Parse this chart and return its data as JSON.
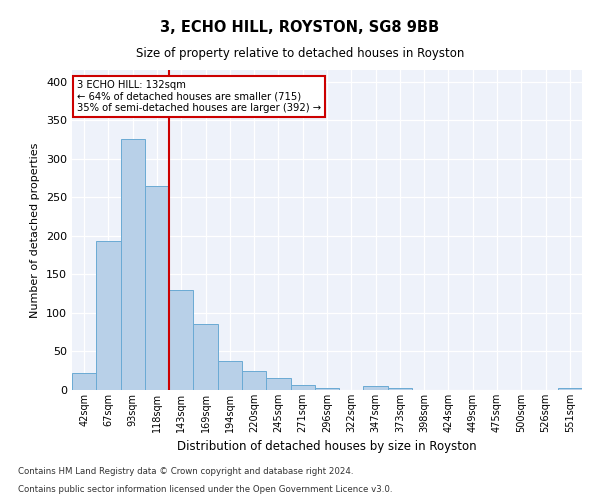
{
  "title1": "3, ECHO HILL, ROYSTON, SG8 9BB",
  "title2": "Size of property relative to detached houses in Royston",
  "xlabel": "Distribution of detached houses by size in Royston",
  "ylabel": "Number of detached properties",
  "categories": [
    "42sqm",
    "67sqm",
    "93sqm",
    "118sqm",
    "143sqm",
    "169sqm",
    "194sqm",
    "220sqm",
    "245sqm",
    "271sqm",
    "296sqm",
    "322sqm",
    "347sqm",
    "373sqm",
    "398sqm",
    "424sqm",
    "449sqm",
    "475sqm",
    "500sqm",
    "526sqm",
    "551sqm"
  ],
  "values": [
    22,
    193,
    325,
    265,
    130,
    85,
    38,
    25,
    15,
    7,
    3,
    0,
    5,
    3,
    0,
    0,
    0,
    0,
    0,
    0,
    2
  ],
  "bar_color": "#b8d0e8",
  "bar_edge_color": "#6aaad4",
  "vline_x": 3.5,
  "vline_color": "#cc0000",
  "annotation_line1": "3 ECHO HILL: 132sqm",
  "annotation_line2": "← 64% of detached houses are smaller (715)",
  "annotation_line3": "35% of semi-detached houses are larger (392) →",
  "annotation_box_color": "#ffffff",
  "annotation_box_edge": "#cc0000",
  "ylim": [
    0,
    415
  ],
  "yticks": [
    0,
    50,
    100,
    150,
    200,
    250,
    300,
    350,
    400
  ],
  "footnote1": "Contains HM Land Registry data © Crown copyright and database right 2024.",
  "footnote2": "Contains public sector information licensed under the Open Government Licence v3.0.",
  "bg_color": "#eef2fa"
}
